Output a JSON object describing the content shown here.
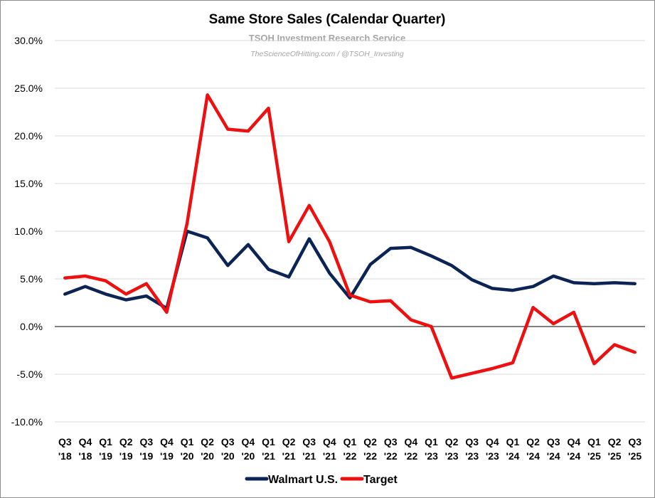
{
  "chart_data": {
    "type": "line",
    "title": "Same Store Sales (Calendar Quarter)",
    "watermark": {
      "line1": "TSOH Investment Research Service",
      "line2": "TheScienceOfHitting.com / @TSOH_Investing"
    },
    "xlabel": "",
    "ylabel": "",
    "ylim": [
      -10,
      30
    ],
    "yticks": [
      30,
      25,
      20,
      15,
      10,
      5,
      0,
      -5,
      -10
    ],
    "ytick_labels": [
      "30.0%",
      "25.0%",
      "20.0%",
      "15.0%",
      "10.0%",
      "5.0%",
      "0.0%",
      "-5.0%",
      "-10.0%"
    ],
    "categories": [
      [
        "Q3",
        "'18"
      ],
      [
        "Q4",
        "'18"
      ],
      [
        "Q1",
        "'19"
      ],
      [
        "Q2",
        "'19"
      ],
      [
        "Q3",
        "'19"
      ],
      [
        "Q4",
        "'19"
      ],
      [
        "Q1",
        "'20"
      ],
      [
        "Q2",
        "'20"
      ],
      [
        "Q3",
        "'20"
      ],
      [
        "Q4",
        "'20"
      ],
      [
        "Q1",
        "'21"
      ],
      [
        "Q2",
        "'21"
      ],
      [
        "Q3",
        "'21"
      ],
      [
        "Q4",
        "'21"
      ],
      [
        "Q1",
        "'22"
      ],
      [
        "Q2",
        "'22"
      ],
      [
        "Q3",
        "'22"
      ],
      [
        "Q4",
        "'22"
      ],
      [
        "Q1",
        "'23"
      ],
      [
        "Q2",
        "'23"
      ],
      [
        "Q3",
        "'23"
      ],
      [
        "Q4",
        "'23"
      ],
      [
        "Q1",
        "'24"
      ],
      [
        "Q2",
        "'24"
      ],
      [
        "Q3",
        "'24"
      ],
      [
        "Q4",
        "'24"
      ],
      [
        "Q1",
        "'25"
      ],
      [
        "Q2",
        "'25"
      ],
      [
        "Q3",
        "'25"
      ]
    ],
    "series": [
      {
        "name": "Walmart U.S.",
        "color": "#0b2355",
        "values": [
          3.4,
          4.2,
          3.4,
          2.8,
          3.2,
          1.9,
          10.0,
          9.3,
          6.4,
          8.6,
          6.0,
          5.2,
          9.2,
          5.6,
          3.0,
          6.5,
          8.2,
          8.3,
          7.4,
          6.4,
          4.9,
          4.0,
          3.8,
          4.2,
          5.3,
          4.6,
          4.5,
          4.6,
          4.5
        ]
      },
      {
        "name": "Target",
        "color": "#ee1010",
        "values": [
          5.1,
          5.3,
          4.8,
          3.4,
          4.5,
          1.5,
          10.8,
          24.3,
          20.7,
          20.5,
          22.9,
          8.9,
          12.7,
          8.9,
          3.3,
          2.6,
          2.7,
          0.7,
          0.0,
          -5.4,
          -4.9,
          -4.4,
          -3.8,
          2.0,
          0.3,
          1.5,
          -3.9,
          -1.9,
          -2.7
        ]
      }
    ],
    "legend": "bottom-center",
    "grid": true
  }
}
